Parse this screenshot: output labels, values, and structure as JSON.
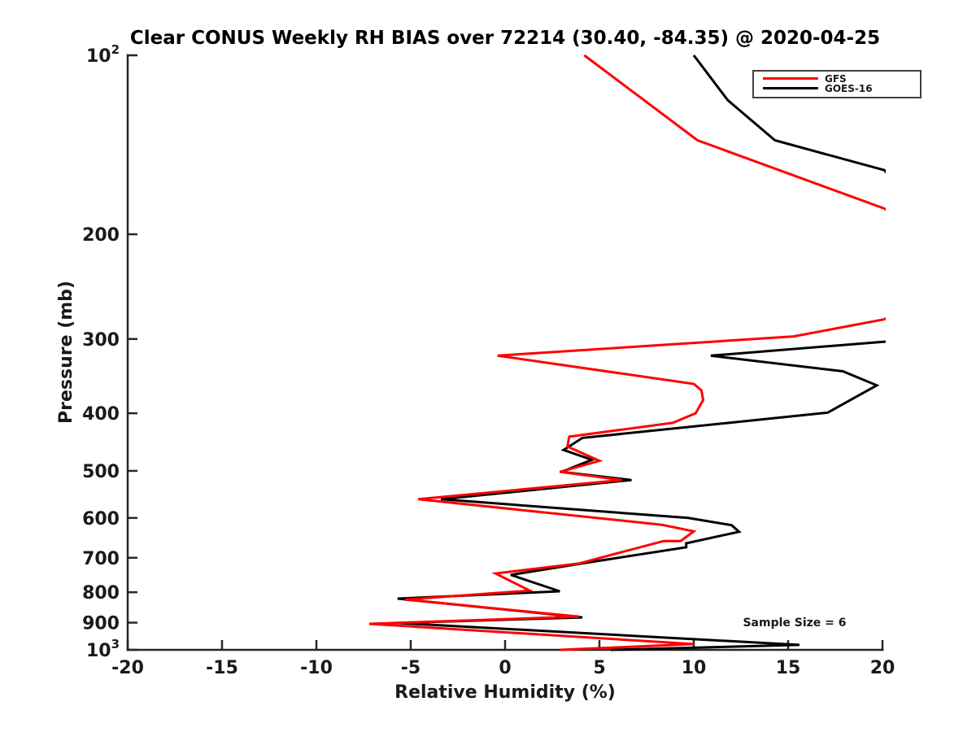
{
  "chart_data": {
    "type": "line",
    "title": "Clear CONUS Weekly RH BIAS over 72214 (30.40, -84.35) @ 2020-04-25",
    "xlabel": "Relative Humidity (%)",
    "ylabel": "Pressure (mb)",
    "annotation": "Sample Size = 6",
    "axis_color": "#262626",
    "background_color": "#ffffff",
    "x_axis": {
      "min": -20,
      "max": 20,
      "ticks": [
        -20,
        -15,
        -10,
        -5,
        0,
        5,
        10,
        15,
        20
      ]
    },
    "y_axis": {
      "scale": "log",
      "inverted": true,
      "min_mb": 100,
      "max_mb": 1000,
      "ticks": [
        {
          "value": 100,
          "label": "10^2"
        },
        {
          "value": 200,
          "label": "200"
        },
        {
          "value": 300,
          "label": "300"
        },
        {
          "value": 400,
          "label": "400"
        },
        {
          "value": 500,
          "label": "500"
        },
        {
          "value": 600,
          "label": "600"
        },
        {
          "value": 700,
          "label": "700"
        },
        {
          "value": 800,
          "label": "800"
        },
        {
          "value": 900,
          "label": "900"
        },
        {
          "value": 1000,
          "label": "10^3"
        }
      ]
    },
    "legend": {
      "position": "top-right",
      "entries": [
        {
          "name": "GFS",
          "color": "#ff0000"
        },
        {
          "name": "GOES-16",
          "color": "#000000"
        }
      ]
    },
    "series": [
      {
        "name": "GOES-16",
        "color": "#000000",
        "line_width": 3,
        "points_rh_mb": [
          [
            10.0,
            100
          ],
          [
            11.8,
            119
          ],
          [
            14.3,
            139
          ],
          [
            20.1,
            156
          ],
          [
            24.5,
            225
          ],
          [
            20.2,
            303
          ],
          [
            10.9,
            320
          ],
          [
            17.9,
            340
          ],
          [
            19.7,
            359
          ],
          [
            17.1,
            399
          ],
          [
            4.1,
            440
          ],
          [
            3.1,
            461
          ],
          [
            4.6,
            479
          ],
          [
            3.0,
            502
          ],
          [
            6.7,
            518
          ],
          [
            -3.4,
            558
          ],
          [
            9.7,
            600
          ],
          [
            12.0,
            617
          ],
          [
            12.4,
            633
          ],
          [
            9.6,
            662
          ],
          [
            9.6,
            672
          ],
          [
            3.9,
            717
          ],
          [
            0.3,
            748
          ],
          [
            2.9,
            797
          ],
          [
            -5.7,
            820
          ],
          [
            4.1,
            882
          ],
          [
            -5.7,
            901
          ],
          [
            15.6,
            981
          ],
          [
            5.6,
            1000
          ]
        ]
      },
      {
        "name": "GFS",
        "color": "#ff0000",
        "line_width": 3,
        "points_rh_mb": [
          [
            4.2,
            100
          ],
          [
            10.2,
            139
          ],
          [
            20.1,
            181
          ],
          [
            24.5,
            230
          ],
          [
            20.1,
            278
          ],
          [
            15.3,
            297
          ],
          [
            -0.4,
            320
          ],
          [
            10.0,
            357
          ],
          [
            10.4,
            366
          ],
          [
            10.5,
            380
          ],
          [
            10.1,
            400
          ],
          [
            8.9,
            415
          ],
          [
            3.4,
            438
          ],
          [
            3.3,
            455
          ],
          [
            5.0,
            481
          ],
          [
            2.9,
            502
          ],
          [
            6.2,
            518
          ],
          [
            -4.6,
            558
          ],
          [
            8.3,
            616
          ],
          [
            10.0,
            632
          ],
          [
            9.3,
            656
          ],
          [
            8.4,
            656
          ],
          [
            3.9,
            716
          ],
          [
            -0.5,
            744
          ],
          [
            1.3,
            795
          ],
          [
            -5.3,
            823
          ],
          [
            3.9,
            879
          ],
          [
            -7.2,
            904
          ],
          [
            10.0,
            978
          ],
          [
            2.9,
            1000
          ]
        ]
      }
    ]
  }
}
